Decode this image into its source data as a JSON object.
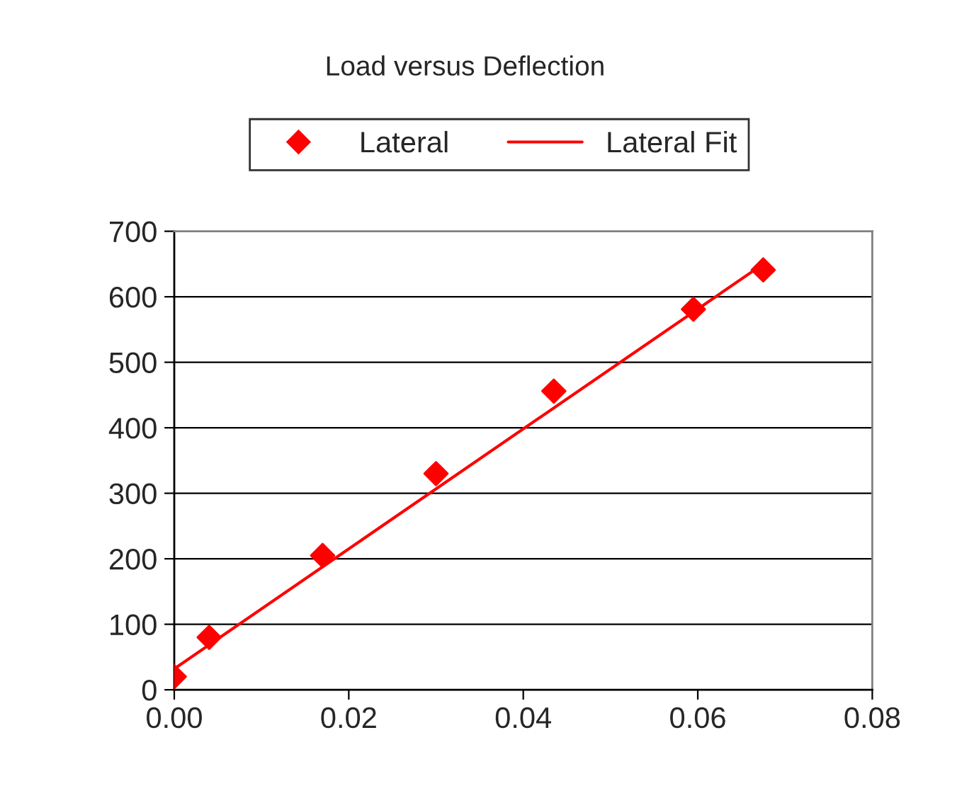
{
  "chart_data": {
    "type": "scatter",
    "title": "Load versus Deflection",
    "series": [
      {
        "name": "Lateral",
        "color": "#ff0000",
        "marker": "diamond",
        "x": [
          0.0,
          0.004,
          0.017,
          0.03,
          0.0435,
          0.0595,
          0.0675
        ],
        "values": [
          20,
          80,
          205,
          330,
          456,
          581,
          641
        ]
      },
      {
        "name": "Lateral Fit",
        "type": "line",
        "color": "#ff0000",
        "marker": "none",
        "line_style": "solid",
        "x": [
          0.0,
          0.0675
        ],
        "values": [
          32,
          650
        ]
      }
    ],
    "xlim": [
      0,
      0.08
    ],
    "xticks": [
      {
        "value": 0,
        "label": "0.00"
      },
      {
        "value": 0.02,
        "label": "0.02"
      },
      {
        "value": 0.04,
        "label": "0.04"
      },
      {
        "value": 0.06,
        "label": "0.06"
      },
      {
        "value": 0.08,
        "label": "0.08"
      }
    ],
    "ylim": [
      0,
      700
    ],
    "yticks": [
      0,
      100,
      200,
      300,
      400,
      500,
      600,
      700
    ],
    "grid": "y",
    "legend": "top"
  }
}
